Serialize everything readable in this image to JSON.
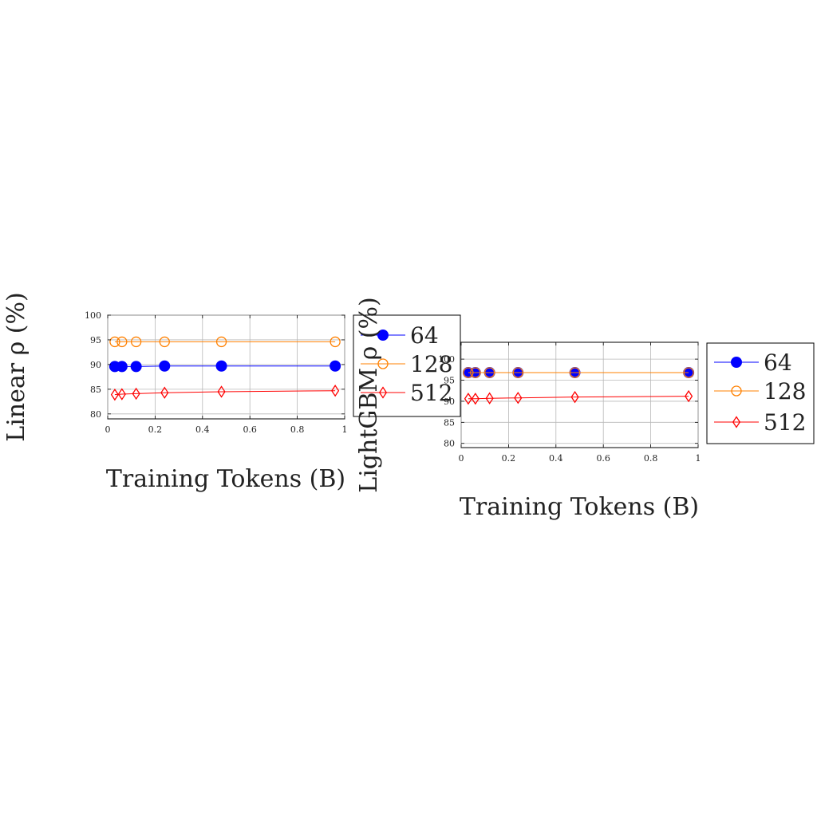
{
  "chart_data": [
    {
      "type": "line",
      "title": "",
      "xlabel": "Training Tokens (B)",
      "ylabel": "Linear ρ (%)",
      "xlim": [
        0,
        1
      ],
      "ylim": [
        79,
        100
      ],
      "xticks": [
        0,
        0.2,
        0.4,
        0.6,
        0.8,
        1
      ],
      "xtick_labels": [
        "0",
        "0.2",
        "0.4",
        "0.6",
        "0.8",
        "1"
      ],
      "yticks": [
        80,
        85,
        90,
        95,
        100
      ],
      "ytick_labels": [
        "80",
        "85",
        "90",
        "95",
        "100"
      ],
      "grid": true,
      "legend_position": "right",
      "x": [
        0.03,
        0.06,
        0.12,
        0.24,
        0.48,
        0.96
      ],
      "series": [
        {
          "name": "64",
          "color": "#0000ff",
          "marker": "filled-circle",
          "values": [
            89.6,
            89.6,
            89.6,
            89.7,
            89.7,
            89.7
          ]
        },
        {
          "name": "128",
          "color": "#ff8000",
          "marker": "open-circle",
          "values": [
            94.6,
            94.6,
            94.6,
            94.6,
            94.6,
            94.6
          ]
        },
        {
          "name": "512",
          "color": "#ff0000",
          "marker": "open-diamond",
          "values": [
            83.9,
            84.0,
            84.1,
            84.3,
            84.5,
            84.7
          ]
        }
      ]
    },
    {
      "type": "line",
      "title": "",
      "xlabel": "Training Tokens (B)",
      "ylabel": "LightGBM ρ (%)",
      "xlim": [
        0,
        1
      ],
      "ylim": [
        79,
        104
      ],
      "xticks": [
        0,
        0.2,
        0.4,
        0.6,
        0.8,
        1
      ],
      "xtick_labels": [
        "0",
        "0.2",
        "0.4",
        "0.6",
        "0.8",
        "1"
      ],
      "yticks": [
        80,
        85,
        90,
        95,
        100
      ],
      "ytick_labels": [
        "80",
        "85",
        "90",
        "95",
        "100"
      ],
      "grid": true,
      "legend_position": "right",
      "x": [
        0.03,
        0.06,
        0.12,
        0.24,
        0.48,
        0.96
      ],
      "series": [
        {
          "name": "64",
          "color": "#0000ff",
          "marker": "filled-circle",
          "values": [
            96.8,
            96.8,
            96.8,
            96.8,
            96.8,
            96.8
          ]
        },
        {
          "name": "128",
          "color": "#ff8000",
          "marker": "open-circle",
          "values": [
            96.8,
            96.8,
            96.8,
            96.8,
            96.8,
            96.8
          ]
        },
        {
          "name": "512",
          "color": "#ff0000",
          "marker": "open-diamond",
          "values": [
            90.6,
            90.6,
            90.7,
            90.8,
            91.0,
            91.2
          ]
        }
      ]
    }
  ]
}
